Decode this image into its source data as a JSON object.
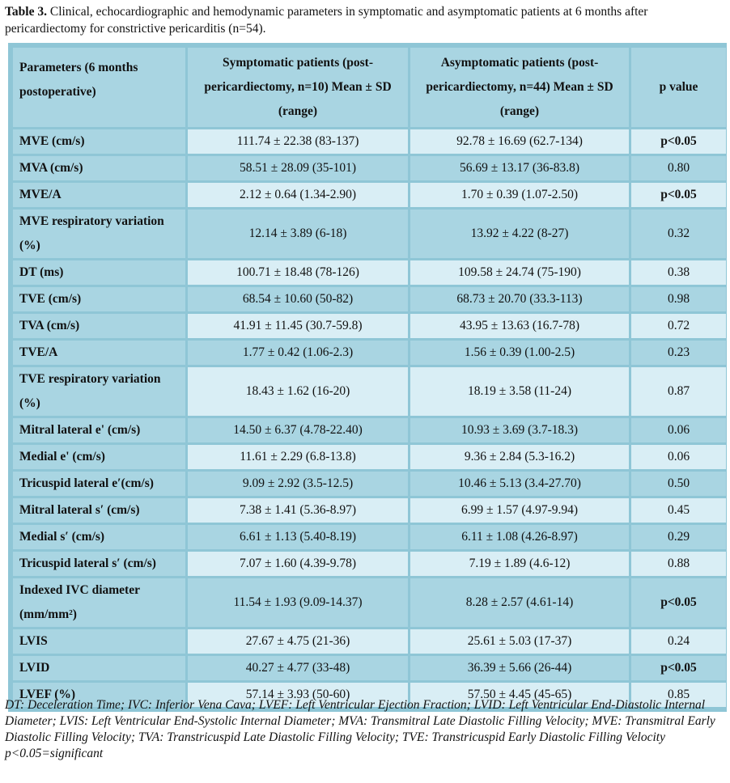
{
  "caption": {
    "label": "Table 3.",
    "text": " Clinical, echocardiographic and hemodynamic parameters in symptomatic and asymptomatic patients at 6 months after pericardiectomy for constrictive pericarditis (n=54)."
  },
  "table": {
    "headers": {
      "param": "Parameters (6 months postoperative)",
      "symptomatic": "Symptomatic patients (post-pericardiectomy, n=10) Mean ± SD (range)",
      "asymptomatic": "Asymptomatic patients (post-pericardiectomy, n=44) Mean ± SD (range)",
      "pvalue": "p value"
    },
    "rows": [
      {
        "param": "MVE (cm/s)",
        "sym": "111.74 ± 22.38 (83-137)",
        "asym": "92.78 ± 16.69 (62.7-134)",
        "p": "p<0.05"
      },
      {
        "param": "MVA (cm/s)",
        "sym": "58.51 ± 28.09 (35-101)",
        "asym": "56.69 ± 13.17 (36-83.8)",
        "p": "0.80"
      },
      {
        "param": "MVE/A",
        "sym": "2.12 ± 0.64 (1.34-2.90)",
        "asym": "1.70 ± 0.39 (1.07-2.50)",
        "p": "p<0.05"
      },
      {
        "param": "MVE respiratory variation (%)",
        "sym": "12.14 ± 3.89 (6-18)",
        "asym": "13.92 ± 4.22 (8-27)",
        "p": "0.32"
      },
      {
        "param": "DT (ms)",
        "sym": "100.71 ± 18.48 (78-126)",
        "asym": "109.58 ± 24.74 (75-190)",
        "p": "0.38"
      },
      {
        "param": "TVE (cm/s)",
        "sym": "68.54 ± 10.60 (50-82)",
        "asym": "68.73 ± 20.70 (33.3-113)",
        "p": "0.98"
      },
      {
        "param": "TVA (cm/s)",
        "sym": "41.91 ± 11.45 (30.7-59.8)",
        "asym": "43.95 ± 13.63 (16.7-78)",
        "p": "0.72"
      },
      {
        "param": "TVE/A",
        "sym": "1.77 ± 0.42 (1.06-2.3)",
        "asym": "1.56 ± 0.39 (1.00-2.5)",
        "p": "0.23"
      },
      {
        "param": "TVE respiratory variation (%)",
        "sym": "18.43 ± 1.62 (16-20)",
        "asym": "18.19 ± 3.58 (11-24)",
        "p": "0.87"
      },
      {
        "param": "Mitral lateral e' (cm/s)",
        "sym": "14.50 ± 6.37 (4.78-22.40)",
        "asym": "10.93 ± 3.69 (3.7-18.3)",
        "p": "0.06"
      },
      {
        "param": "Medial e' (cm/s)",
        "sym": "11.61 ± 2.29 (6.8-13.8)",
        "asym": "9.36 ± 2.84 (5.3-16.2)",
        "p": "0.06"
      },
      {
        "param": "Tricuspid lateral e′(cm/s)",
        "sym": "9.09 ± 2.92 (3.5-12.5)",
        "asym": "10.46 ± 5.13 (3.4-27.70)",
        "p": "0.50"
      },
      {
        "param": "Mitral lateral s′ (cm/s)",
        "sym": "7.38 ± 1.41 (5.36-8.97)",
        "asym": "6.99 ± 1.57 (4.97-9.94)",
        "p": "0.45"
      },
      {
        "param": "Medial s′ (cm/s)",
        "sym": "6.61 ± 1.13 (5.40-8.19)",
        "asym": "6.11 ± 1.08 (4.26-8.97)",
        "p": "0.29"
      },
      {
        "param": "Tricuspid lateral s′ (cm/s)",
        "sym": "7.07 ± 1.60 (4.39-9.78)",
        "asym": "7.19 ± 1.89 (4.6-12)",
        "p": "0.88"
      },
      {
        "param": "Indexed IVC diameter (mm/mm²)",
        "sym": "11.54 ± 1.93 (9.09-14.37)",
        "asym": "8.28 ± 2.57 (4.61-14)",
        "p": "p<0.05"
      },
      {
        "param": "LVIS",
        "sym": "27.67 ± 4.75 (21-36)",
        "asym": "25.61 ± 5.03 (17-37)",
        "p": "0.24"
      },
      {
        "param": "LVID",
        "sym": "40.27 ± 4.77 (33-48)",
        "asym": "36.39 ± 5.66 (26-44)",
        "p": "p<0.05"
      },
      {
        "param": "LVEF (%)",
        "sym": "57.14 ± 3.93 (50-60)",
        "asym": "57.50 ± 4.45 (45-65)",
        "p": "0.85"
      }
    ]
  },
  "footnote": {
    "abbrev": "DT: Deceleration Time; IVC: Inferior Vena Cava; LVEF: Left Ventricular Ejection Fraction; LVID: Left Ventricular End-Diastolic Internal Diameter; LVIS: Left Ventricular End-Systolic Internal Diameter; MVA: Transmitral Late Diastolic Filling Velocity; MVE: Transmitral Early Diastolic Filling Velocity; TVA: Transtricuspid Late Diastolic Filling Velocity; TVE: Transtricuspid Early Diastolic Filling Velocity",
    "significance": "p<0.05=significant"
  },
  "colors": {
    "frame": "#8fc6d6",
    "dark_cell": "#a9d5e2",
    "light_cell": "#d9eef5"
  }
}
